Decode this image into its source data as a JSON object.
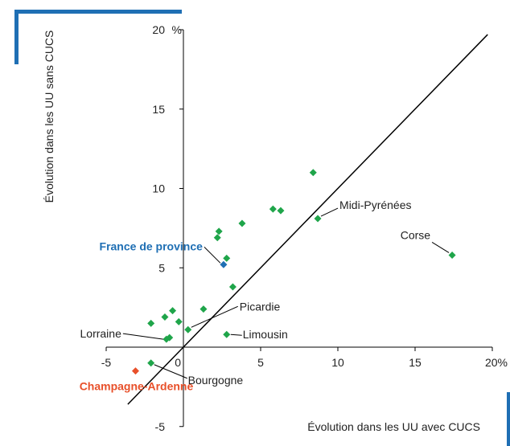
{
  "chart_data": {
    "type": "scatter",
    "title": "",
    "xlabel": "Évolution dans les UU avec CUCS",
    "ylabel": "Évolution dans les UU sans CUCS",
    "xunit": "%",
    "yunit": "%",
    "xlim": [
      -5,
      20
    ],
    "ylim": [
      -5,
      20
    ],
    "xticks": [
      -5,
      0,
      5,
      10,
      15,
      20
    ],
    "yticks": [
      -5,
      5,
      10,
      15,
      20
    ],
    "xtick_labels": [
      "-5",
      "0",
      "5",
      "10",
      "15",
      "20%"
    ],
    "ytick_labels": [
      "-5",
      "5",
      "10",
      "15",
      "20"
    ],
    "reference_line": "y = x",
    "colors": {
      "region": "#1fa54a",
      "france_province": "#1f6fb4",
      "champagne": "#e8502a",
      "axis": "#000000"
    },
    "points": [
      {
        "x": 17.4,
        "y": 5.8,
        "label": "Corse",
        "color": "#1fa54a"
      },
      {
        "x": 8.7,
        "y": 8.1,
        "label": "Midi-Pyrénées",
        "color": "#1fa54a"
      },
      {
        "x": 8.4,
        "y": 11.0,
        "label": "",
        "color": "#1fa54a"
      },
      {
        "x": 5.8,
        "y": 8.7,
        "label": "",
        "color": "#1fa54a"
      },
      {
        "x": 6.3,
        "y": 8.6,
        "label": "",
        "color": "#1fa54a"
      },
      {
        "x": 3.8,
        "y": 7.8,
        "label": "",
        "color": "#1fa54a"
      },
      {
        "x": 2.3,
        "y": 7.3,
        "label": "",
        "color": "#1fa54a"
      },
      {
        "x": 2.2,
        "y": 6.9,
        "label": "",
        "color": "#1fa54a"
      },
      {
        "x": 2.8,
        "y": 5.6,
        "label": "",
        "color": "#1fa54a"
      },
      {
        "x": 2.6,
        "y": 5.2,
        "label": "France de province",
        "color": "#1f6fb4"
      },
      {
        "x": 3.2,
        "y": 3.8,
        "label": "",
        "color": "#1fa54a"
      },
      {
        "x": 1.3,
        "y": 2.4,
        "label": "",
        "color": "#1fa54a"
      },
      {
        "x": 0.3,
        "y": 1.1,
        "label": "Picardie",
        "color": "#1fa54a"
      },
      {
        "x": 2.8,
        "y": 0.8,
        "label": "Limousin",
        "color": "#1fa54a"
      },
      {
        "x": -0.3,
        "y": 1.6,
        "label": "",
        "color": "#1fa54a"
      },
      {
        "x": -0.7,
        "y": 2.3,
        "label": "",
        "color": "#1fa54a"
      },
      {
        "x": -1.2,
        "y": 1.9,
        "label": "",
        "color": "#1fa54a"
      },
      {
        "x": -2.1,
        "y": 1.5,
        "label": "",
        "color": "#1fa54a"
      },
      {
        "x": -0.9,
        "y": 0.6,
        "label": "",
        "color": "#1fa54a"
      },
      {
        "x": -1.1,
        "y": 0.5,
        "label": "Lorraine",
        "color": "#1fa54a"
      },
      {
        "x": -2.1,
        "y": -1.0,
        "label": "Bourgogne",
        "color": "#1fa54a"
      },
      {
        "x": -3.1,
        "y": -1.5,
        "label": "Champagne-Ardenne",
        "color": "#e8502a"
      }
    ]
  }
}
